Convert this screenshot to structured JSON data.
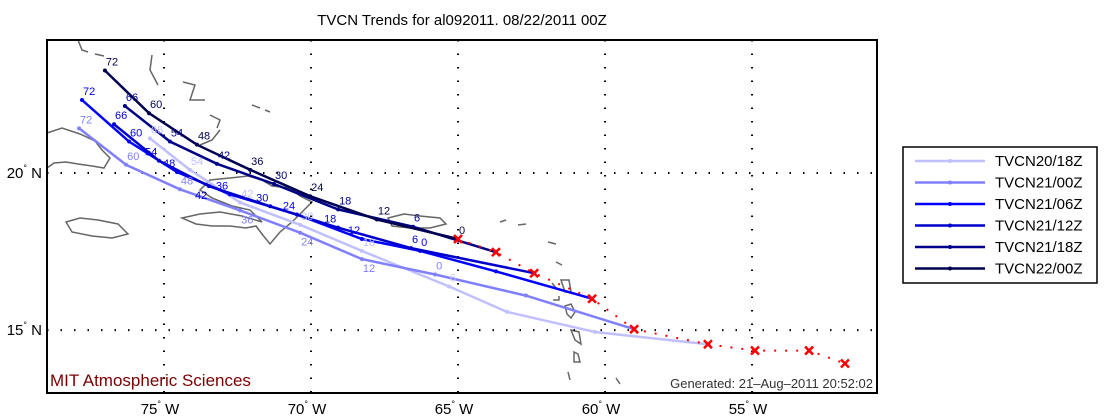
{
  "chart_data": {
    "type": "line",
    "title": "TVCN Trends for al092011. 08/22/2011 00Z",
    "xlabel": "",
    "ylabel": "",
    "xlim": [
      -78.98,
      -50.75
    ],
    "ylim": [
      13.0,
      24.23
    ],
    "grid": true,
    "x_ticks": [
      {
        "value": -75,
        "label": "75",
        "suffix": "W"
      },
      {
        "value": -70,
        "label": "70",
        "suffix": "W"
      },
      {
        "value": -65,
        "label": "65",
        "suffix": "W"
      },
      {
        "value": -60,
        "label": "60",
        "suffix": "W"
      },
      {
        "value": -55,
        "label": "55",
        "suffix": "W"
      }
    ],
    "y_ticks": [
      {
        "value": 20,
        "label": "20",
        "suffix": "N"
      },
      {
        "value": 15,
        "label": "15",
        "suffix": "N"
      }
    ],
    "legend_position": "right",
    "series": [
      {
        "name": "TVCN20/18Z",
        "color": "#c0c0ff",
        "points": [
          [
            -75.48,
            21.1,
            "66"
          ],
          [
            -74.12,
            20.1,
            "54"
          ],
          [
            -72.41,
            19.06,
            "42"
          ],
          [
            -70.37,
            18.35,
            "30"
          ],
          [
            -68.27,
            17.52,
            "18"
          ],
          [
            -65.31,
            16.39,
            "6"
          ],
          [
            -63.33,
            15.58,
            ""
          ],
          [
            -60.34,
            14.94,
            ""
          ],
          [
            -56.5,
            14.55,
            ""
          ]
        ]
      },
      {
        "name": "TVCN21/00Z",
        "color": "#8080ff",
        "points": [
          [
            -77.89,
            21.42,
            "72"
          ],
          [
            -76.29,
            20.26,
            "60"
          ],
          [
            -74.46,
            19.48,
            "48"
          ],
          [
            -72.41,
            18.81,
            "36"
          ],
          [
            -70.37,
            18.1,
            "24"
          ],
          [
            -68.27,
            17.26,
            "12"
          ],
          [
            -65.78,
            16.77,
            "0"
          ],
          [
            -62.69,
            16.1,
            ""
          ],
          [
            -59.01,
            15.03,
            ""
          ]
        ]
      },
      {
        "name": "TVCN21/06Z",
        "color": "#0000ff",
        "points": [
          [
            -77.79,
            22.32,
            "72"
          ],
          [
            -76.19,
            21.0,
            "60"
          ],
          [
            -74.56,
            20.03,
            "48"
          ],
          [
            -72.76,
            19.32,
            "36"
          ],
          [
            -70.48,
            18.68,
            "24"
          ],
          [
            -68.27,
            17.9,
            "12"
          ],
          [
            -66.29,
            17.52,
            "0"
          ],
          [
            -63.71,
            16.87,
            ""
          ],
          [
            -60.44,
            16.0,
            ""
          ]
        ]
      },
      {
        "name": "TVCN21/12Z",
        "color": "#0000cc",
        "points": [
          [
            -76.7,
            21.55,
            "66"
          ],
          [
            -75.17,
            20.39,
            "54"
          ],
          [
            -73.47,
            19.58,
            "42"
          ],
          [
            -71.39,
            18.94,
            "30"
          ],
          [
            -69.08,
            18.26,
            "18"
          ],
          [
            -66.6,
            17.61,
            "6"
          ],
          [
            -62.41,
            16.81,
            ""
          ]
        ]
      },
      {
        "name": "TVCN21/18Z",
        "color": "#000088",
        "points": [
          [
            -76.33,
            22.13,
            "66"
          ],
          [
            -74.8,
            21.0,
            "54"
          ],
          [
            -73.2,
            20.29,
            "42"
          ],
          [
            -71.26,
            19.65,
            "30"
          ],
          [
            -69.08,
            18.84,
            "18"
          ],
          [
            -66.53,
            18.29,
            "6"
          ],
          [
            -63.71,
            17.48,
            ""
          ]
        ]
      },
      {
        "name": "TVCN22/00Z",
        "color": "#000050",
        "points": [
          [
            -77.01,
            23.26,
            "72"
          ],
          [
            -75.51,
            21.9,
            "60"
          ],
          [
            -73.88,
            20.9,
            "48"
          ],
          [
            -72.07,
            20.1,
            "36"
          ],
          [
            -70.03,
            19.26,
            "24"
          ],
          [
            -67.76,
            18.52,
            "12"
          ],
          [
            -65.0,
            17.9,
            "0"
          ]
        ]
      }
    ],
    "best_track": {
      "color": "#ff0000",
      "points": [
        [
          -65.0,
          17.9
        ],
        [
          -63.71,
          17.48
        ],
        [
          -62.41,
          16.81
        ],
        [
          -60.44,
          16.0
        ],
        [
          -59.01,
          15.03
        ],
        [
          -56.5,
          14.55
        ],
        [
          -54.9,
          14.35
        ],
        [
          -53.06,
          14.35
        ],
        [
          -51.84,
          13.94
        ]
      ]
    }
  },
  "footer": {
    "credit": "MIT Atmospheric Sciences",
    "generated": "Generated: 21–Aug–2011 20:52:02"
  }
}
